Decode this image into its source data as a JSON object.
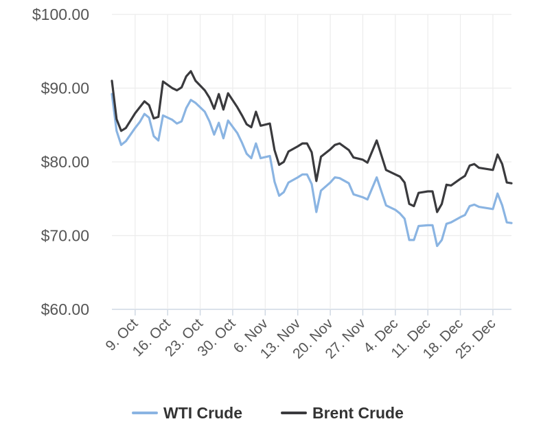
{
  "chart_data": {
    "type": "line",
    "title": "",
    "xlabel": "",
    "ylabel": "",
    "ylim": [
      60,
      100
    ],
    "x_range": [
      "2023-10-04",
      "2023-12-29"
    ],
    "yticks": [
      {
        "value": 100,
        "label": "$100.00"
      },
      {
        "value": 90,
        "label": "$90.00"
      },
      {
        "value": 80,
        "label": "$80.00"
      },
      {
        "value": 70,
        "label": "$70.00"
      },
      {
        "value": 60,
        "label": "$60.00"
      }
    ],
    "xticks": [
      {
        "date": "2023-10-09",
        "label": "9. Oct"
      },
      {
        "date": "2023-10-16",
        "label": "16. Oct"
      },
      {
        "date": "2023-10-23",
        "label": "23. Oct"
      },
      {
        "date": "2023-10-30",
        "label": "30. Oct"
      },
      {
        "date": "2023-11-06",
        "label": "6. Nov"
      },
      {
        "date": "2023-11-13",
        "label": "13. Nov"
      },
      {
        "date": "2023-11-20",
        "label": "20. Nov"
      },
      {
        "date": "2023-11-27",
        "label": "27. Nov"
      },
      {
        "date": "2023-12-04",
        "label": "4. Dec"
      },
      {
        "date": "2023-12-11",
        "label": "11. Dec"
      },
      {
        "date": "2023-12-18",
        "label": "18. Dec"
      },
      {
        "date": "2023-12-25",
        "label": "25. Dec"
      }
    ],
    "grid": true,
    "legend_position": "bottom",
    "series": [
      {
        "name": "WTI Crude",
        "color": "#8ab4e2",
        "points": [
          [
            "2023-10-04",
            89.2
          ],
          [
            "2023-10-05",
            84.2
          ],
          [
            "2023-10-06",
            82.3
          ],
          [
            "2023-10-07",
            82.8
          ],
          [
            "2023-10-09",
            84.6
          ],
          [
            "2023-10-10",
            85.4
          ],
          [
            "2023-10-11",
            86.5
          ],
          [
            "2023-10-12",
            86.0
          ],
          [
            "2023-10-13",
            83.5
          ],
          [
            "2023-10-14",
            82.9
          ],
          [
            "2023-10-15",
            86.3
          ],
          [
            "2023-10-17",
            85.7
          ],
          [
            "2023-10-18",
            85.2
          ],
          [
            "2023-10-19",
            85.5
          ],
          [
            "2023-10-20",
            87.3
          ],
          [
            "2023-10-21",
            88.4
          ],
          [
            "2023-10-22",
            88.0
          ],
          [
            "2023-10-24",
            86.8
          ],
          [
            "2023-10-25",
            85.5
          ],
          [
            "2023-10-26",
            83.7
          ],
          [
            "2023-10-27",
            85.3
          ],
          [
            "2023-10-28",
            83.2
          ],
          [
            "2023-10-29",
            85.6
          ],
          [
            "2023-10-31",
            83.9
          ],
          [
            "2023-11-01",
            82.6
          ],
          [
            "2023-11-02",
            81.1
          ],
          [
            "2023-11-03",
            80.5
          ],
          [
            "2023-11-04",
            82.5
          ],
          [
            "2023-11-05",
            80.5
          ],
          [
            "2023-11-07",
            80.8
          ],
          [
            "2023-11-08",
            77.3
          ],
          [
            "2023-11-09",
            75.4
          ],
          [
            "2023-11-10",
            75.9
          ],
          [
            "2023-11-11",
            77.2
          ],
          [
            "2023-11-13",
            77.9
          ],
          [
            "2023-11-14",
            78.3
          ],
          [
            "2023-11-15",
            78.3
          ],
          [
            "2023-11-16",
            77.0
          ],
          [
            "2023-11-17",
            73.2
          ],
          [
            "2023-11-18",
            76.1
          ],
          [
            "2023-11-20",
            77.2
          ],
          [
            "2023-11-21",
            77.9
          ],
          [
            "2023-11-22",
            77.8
          ],
          [
            "2023-11-24",
            77.1
          ],
          [
            "2023-11-25",
            75.6
          ],
          [
            "2023-11-27",
            75.2
          ],
          [
            "2023-11-28",
            74.9
          ],
          [
            "2023-11-30",
            77.9
          ],
          [
            "2023-12-02",
            74.1
          ],
          [
            "2023-12-04",
            73.5
          ],
          [
            "2023-12-05",
            73.0
          ],
          [
            "2023-12-06",
            72.3
          ],
          [
            "2023-12-07",
            69.4
          ],
          [
            "2023-12-08",
            69.4
          ],
          [
            "2023-12-09",
            71.3
          ],
          [
            "2023-12-11",
            71.4
          ],
          [
            "2023-12-12",
            71.4
          ],
          [
            "2023-12-13",
            68.6
          ],
          [
            "2023-12-14",
            69.4
          ],
          [
            "2023-12-15",
            71.6
          ],
          [
            "2023-12-16",
            71.8
          ],
          [
            "2023-12-18",
            72.5
          ],
          [
            "2023-12-19",
            72.8
          ],
          [
            "2023-12-20",
            74.0
          ],
          [
            "2023-12-21",
            74.2
          ],
          [
            "2023-12-22",
            73.9
          ],
          [
            "2023-12-25",
            73.6
          ],
          [
            "2023-12-26",
            75.7
          ],
          [
            "2023-12-27",
            74.1
          ],
          [
            "2023-12-28",
            71.8
          ],
          [
            "2023-12-29",
            71.7
          ]
        ]
      },
      {
        "name": "Brent Crude",
        "color": "#3a3a3d",
        "points": [
          [
            "2023-10-04",
            91.0
          ],
          [
            "2023-10-05",
            85.8
          ],
          [
            "2023-10-06",
            84.2
          ],
          [
            "2023-10-07",
            84.6
          ],
          [
            "2023-10-09",
            86.6
          ],
          [
            "2023-10-10",
            87.4
          ],
          [
            "2023-10-11",
            88.2
          ],
          [
            "2023-10-12",
            87.7
          ],
          [
            "2023-10-13",
            85.9
          ],
          [
            "2023-10-14",
            86.1
          ],
          [
            "2023-10-15",
            90.9
          ],
          [
            "2023-10-17",
            90.0
          ],
          [
            "2023-10-18",
            89.7
          ],
          [
            "2023-10-19",
            90.1
          ],
          [
            "2023-10-20",
            91.6
          ],
          [
            "2023-10-21",
            92.3
          ],
          [
            "2023-10-22",
            91.0
          ],
          [
            "2023-10-24",
            89.7
          ],
          [
            "2023-10-25",
            88.7
          ],
          [
            "2023-10-26",
            87.2
          ],
          [
            "2023-10-27",
            89.2
          ],
          [
            "2023-10-28",
            87.1
          ],
          [
            "2023-10-29",
            89.3
          ],
          [
            "2023-10-31",
            87.4
          ],
          [
            "2023-11-01",
            86.3
          ],
          [
            "2023-11-02",
            85.1
          ],
          [
            "2023-11-03",
            84.7
          ],
          [
            "2023-11-04",
            86.8
          ],
          [
            "2023-11-05",
            84.9
          ],
          [
            "2023-11-07",
            85.2
          ],
          [
            "2023-11-08",
            81.6
          ],
          [
            "2023-11-09",
            79.6
          ],
          [
            "2023-11-10",
            80.0
          ],
          [
            "2023-11-11",
            81.4
          ],
          [
            "2023-11-13",
            82.1
          ],
          [
            "2023-11-14",
            82.5
          ],
          [
            "2023-11-15",
            82.5
          ],
          [
            "2023-11-16",
            81.3
          ],
          [
            "2023-11-17",
            77.4
          ],
          [
            "2023-11-18",
            80.7
          ],
          [
            "2023-11-20",
            81.7
          ],
          [
            "2023-11-21",
            82.3
          ],
          [
            "2023-11-22",
            82.5
          ],
          [
            "2023-11-24",
            81.6
          ],
          [
            "2023-11-25",
            80.6
          ],
          [
            "2023-11-27",
            80.3
          ],
          [
            "2023-11-28",
            79.9
          ],
          [
            "2023-11-30",
            82.9
          ],
          [
            "2023-12-02",
            78.9
          ],
          [
            "2023-12-04",
            78.3
          ],
          [
            "2023-12-05",
            78.0
          ],
          [
            "2023-12-06",
            77.2
          ],
          [
            "2023-12-07",
            74.3
          ],
          [
            "2023-12-08",
            74.0
          ],
          [
            "2023-12-09",
            75.8
          ],
          [
            "2023-12-11",
            76.0
          ],
          [
            "2023-12-12",
            76.0
          ],
          [
            "2023-12-13",
            73.2
          ],
          [
            "2023-12-14",
            74.3
          ],
          [
            "2023-12-15",
            76.9
          ],
          [
            "2023-12-16",
            76.8
          ],
          [
            "2023-12-18",
            77.7
          ],
          [
            "2023-12-19",
            78.1
          ],
          [
            "2023-12-20",
            79.5
          ],
          [
            "2023-12-21",
            79.7
          ],
          [
            "2023-12-22",
            79.2
          ],
          [
            "2023-12-25",
            78.9
          ],
          [
            "2023-12-26",
            81.0
          ],
          [
            "2023-12-27",
            79.7
          ],
          [
            "2023-12-28",
            77.2
          ],
          [
            "2023-12-29",
            77.1
          ]
        ]
      }
    ]
  }
}
